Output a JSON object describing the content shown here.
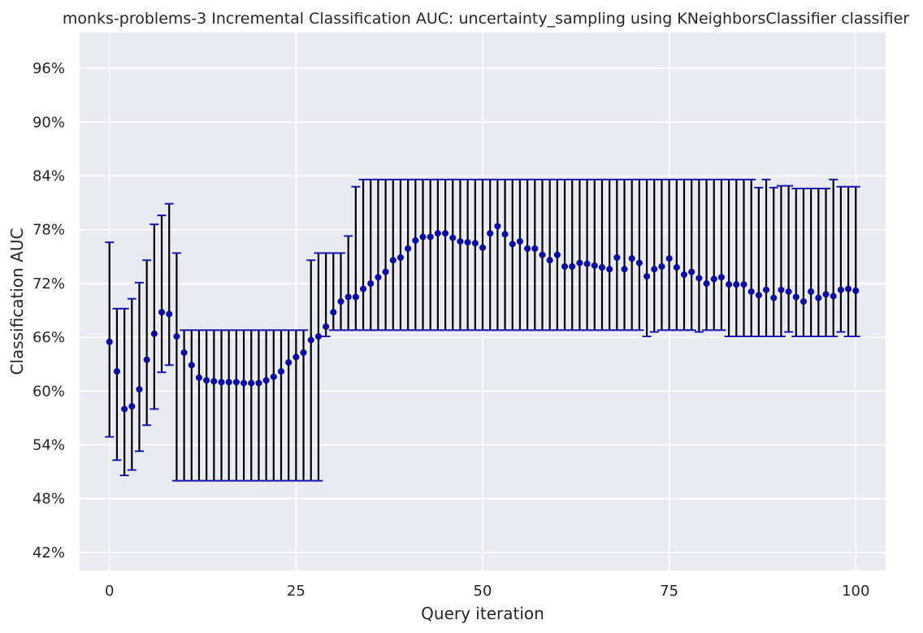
{
  "chart_data": {
    "type": "scatter",
    "title": "monks-problems-3 Incremental Classification AUC: uncertainty_sampling using KNeighborsClassifier classifier",
    "xlabel": "Query iteration",
    "ylabel": "Classification AUC",
    "xlim": [
      -4,
      104
    ],
    "ylim": [
      40,
      100
    ],
    "x_ticks": [
      0,
      25,
      50,
      75,
      100
    ],
    "y_ticks": [
      42,
      48,
      54,
      60,
      66,
      72,
      78,
      84,
      90,
      96
    ],
    "y_tick_suffix": "%",
    "grid": true,
    "background": "#eaeaf2",
    "grid_color": "#ffffff",
    "point_color": "#0a0aa8",
    "errorbar_color": "#000000",
    "cap_color": "#1a1ab0",
    "series": [
      {
        "x": [
          0,
          1,
          2,
          3,
          4,
          5,
          6,
          7,
          8,
          9,
          10,
          11,
          12,
          13,
          14,
          15,
          16,
          17,
          18,
          19,
          20,
          21,
          22,
          23,
          24,
          25,
          26,
          27,
          28,
          29,
          30,
          31,
          32,
          33,
          34,
          35,
          36,
          37,
          38,
          39,
          40,
          41,
          42,
          43,
          44,
          45,
          46,
          47,
          48,
          49,
          50,
          51,
          52,
          53,
          54,
          55,
          56,
          57,
          58,
          59,
          60,
          61,
          62,
          63,
          64,
          65,
          66,
          67,
          68,
          69,
          70,
          71,
          72,
          73,
          74,
          75,
          76,
          77,
          78,
          79,
          80,
          81,
          82,
          83,
          84,
          85,
          86,
          87,
          88,
          89,
          90,
          91,
          92,
          93,
          94,
          95,
          96,
          97,
          98,
          99,
          100
        ],
        "y": [
          65.5,
          62.2,
          58.0,
          58.3,
          60.2,
          63.5,
          66.4,
          68.8,
          68.6,
          66.1,
          64.3,
          62.9,
          61.5,
          61.2,
          61.1,
          61.0,
          61.0,
          61.0,
          60.9,
          60.9,
          60.9,
          61.2,
          61.6,
          62.2,
          63.2,
          63.8,
          64.3,
          65.7,
          66.1,
          67.2,
          68.8,
          70.0,
          70.5,
          70.5,
          71.4,
          72.0,
          72.7,
          73.3,
          74.6,
          74.9,
          75.9,
          76.8,
          77.2,
          77.2,
          77.6,
          77.6,
          77.1,
          76.7,
          76.6,
          76.5,
          76.0,
          77.6,
          78.4,
          77.5,
          76.4,
          76.7,
          75.9,
          75.9,
          75.2,
          74.6,
          75.2,
          73.9,
          73.9,
          74.3,
          74.2,
          74.0,
          73.8,
          73.6,
          74.9,
          73.6,
          74.8,
          74.3,
          72.8,
          73.6,
          73.9,
          74.8,
          73.8,
          73.0,
          73.3,
          72.6,
          72.0,
          72.5,
          72.7,
          71.9,
          71.9,
          71.9,
          71.1,
          70.7,
          71.3,
          70.4,
          71.3,
          71.1,
          70.5,
          70.0,
          71.1,
          70.4,
          70.8,
          70.6,
          71.3,
          71.4,
          71.2
        ],
        "lower": [
          54.9,
          52.3,
          50.6,
          51.2,
          53.3,
          56.2,
          58.0,
          62.1,
          62.9,
          50.0,
          50.0,
          50.0,
          50.0,
          50.0,
          50.0,
          50.0,
          50.0,
          50.0,
          50.0,
          50.0,
          50.0,
          50.0,
          50.0,
          50.0,
          50.0,
          50.0,
          50.0,
          50.0,
          50.0,
          66.1,
          66.8,
          66.8,
          66.8,
          66.8,
          66.8,
          66.8,
          66.8,
          66.8,
          66.8,
          66.8,
          66.8,
          66.8,
          66.8,
          66.8,
          66.8,
          66.8,
          66.8,
          66.8,
          66.8,
          66.8,
          66.8,
          66.8,
          66.8,
          66.8,
          66.8,
          66.8,
          66.8,
          66.8,
          66.8,
          66.8,
          66.8,
          66.8,
          66.8,
          66.8,
          66.8,
          66.8,
          66.8,
          66.8,
          66.8,
          66.8,
          66.8,
          66.8,
          66.1,
          66.6,
          66.8,
          66.8,
          66.8,
          66.8,
          66.8,
          66.6,
          66.8,
          66.8,
          66.8,
          66.1,
          66.1,
          66.1,
          66.1,
          66.1,
          66.1,
          66.1,
          66.1,
          66.6,
          66.1,
          66.1,
          66.1,
          66.1,
          66.1,
          66.1,
          66.6,
          66.1,
          66.1
        ],
        "upper": [
          76.6,
          69.2,
          69.2,
          70.3,
          72.1,
          74.6,
          78.6,
          79.6,
          80.9,
          75.4,
          66.8,
          66.8,
          66.8,
          66.8,
          66.8,
          66.8,
          66.8,
          66.8,
          66.8,
          66.8,
          66.8,
          66.8,
          66.8,
          66.8,
          66.8,
          66.8,
          66.8,
          74.6,
          75.4,
          75.4,
          75.4,
          75.4,
          77.3,
          82.8,
          83.6,
          83.6,
          83.6,
          83.6,
          83.6,
          83.6,
          83.6,
          83.6,
          83.6,
          83.6,
          83.6,
          83.6,
          83.6,
          83.6,
          83.6,
          83.6,
          83.6,
          83.6,
          83.6,
          83.6,
          83.6,
          83.6,
          83.6,
          83.6,
          83.6,
          83.6,
          83.6,
          83.6,
          83.6,
          83.6,
          83.6,
          83.6,
          83.6,
          83.6,
          83.6,
          83.6,
          83.6,
          83.6,
          83.6,
          83.6,
          83.6,
          83.6,
          83.6,
          83.6,
          83.6,
          83.6,
          83.6,
          83.6,
          83.6,
          83.6,
          83.6,
          83.6,
          83.6,
          82.7,
          83.6,
          82.7,
          82.9,
          82.9,
          82.6,
          82.6,
          82.6,
          82.6,
          82.6,
          83.6,
          82.8,
          82.8,
          82.8
        ]
      }
    ]
  }
}
